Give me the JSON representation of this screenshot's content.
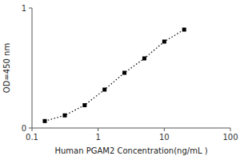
{
  "chart_data": {
    "type": "line",
    "xlabel": "Human PGAM2 Concentration(ng/mL )",
    "ylabel": "OD=450 nm",
    "x": [
      0.156,
      0.313,
      0.625,
      1.25,
      2.5,
      5.0,
      10.0,
      20.0
    ],
    "values": [
      0.058,
      0.105,
      0.19,
      0.32,
      0.46,
      0.58,
      0.72,
      0.82
    ],
    "xlim": [
      0.1,
      100
    ],
    "ylim": [
      0,
      1.0
    ],
    "xticks": [
      0.1,
      1,
      10,
      100
    ],
    "yticks": [
      0,
      1
    ],
    "log": "x",
    "grid": false,
    "color": "black",
    "marker": "square",
    "line_style": "dotted"
  }
}
